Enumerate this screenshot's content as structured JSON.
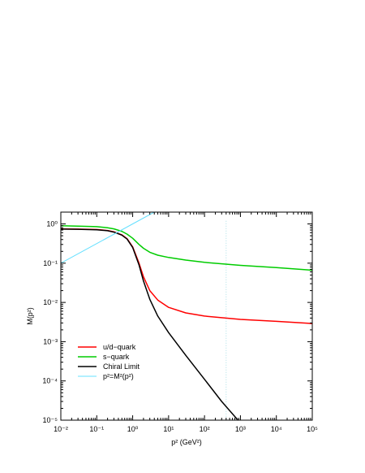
{
  "chart_data": {
    "type": "line",
    "title": "",
    "xlabel": "p² (GeV²)",
    "ylabel": "M(p²)",
    "xscale": "log",
    "yscale": "log",
    "xlim": [
      0.01,
      100000
    ],
    "ylim": [
      1e-05,
      2
    ],
    "x_tick_labels": [
      "10⁻²",
      "10⁻¹",
      "10⁰",
      "10¹",
      "10²",
      "10³",
      "10⁴",
      "10⁵"
    ],
    "y_tick_labels": [
      "10⁻⁵",
      "10⁻⁴",
      "10⁻³",
      "10⁻²",
      "10⁻¹",
      "10⁰"
    ],
    "legend_position": "lower-left",
    "grid": false,
    "series": [
      {
        "name": "u/d−quark",
        "color": "#ff0000",
        "x": [
          0.01,
          0.03,
          0.1,
          0.2,
          0.3,
          0.5,
          0.7,
          1,
          1.5,
          2,
          3,
          5,
          10,
          30,
          100,
          1000,
          10000,
          100000
        ],
        "y": [
          0.75,
          0.74,
          0.72,
          0.68,
          0.63,
          0.53,
          0.42,
          0.26,
          0.1,
          0.045,
          0.02,
          0.0115,
          0.0075,
          0.0054,
          0.0045,
          0.0037,
          0.0033,
          0.0029
        ]
      },
      {
        "name": "s−quark",
        "color": "#00cc00",
        "x": [
          0.01,
          0.03,
          0.1,
          0.2,
          0.3,
          0.5,
          0.7,
          1,
          1.5,
          2,
          3,
          5,
          10,
          30,
          100,
          1000,
          10000,
          100000
        ],
        "y": [
          0.9,
          0.88,
          0.85,
          0.8,
          0.75,
          0.65,
          0.55,
          0.43,
          0.3,
          0.24,
          0.19,
          0.16,
          0.14,
          0.12,
          0.105,
          0.088,
          0.077,
          0.066
        ]
      },
      {
        "name": "Chiral Limit",
        "color": "#000000",
        "x": [
          0.01,
          0.03,
          0.1,
          0.2,
          0.3,
          0.5,
          0.7,
          1,
          1.5,
          2,
          3,
          5,
          10,
          30,
          100,
          300,
          1000,
          1500
        ],
        "y": [
          0.74,
          0.73,
          0.71,
          0.67,
          0.62,
          0.52,
          0.41,
          0.25,
          0.09,
          0.035,
          0.012,
          0.0045,
          0.0017,
          0.00045,
          0.00011,
          3e-05,
          8.5e-06,
          5.8e-06
        ]
      },
      {
        "name": "p²=M²(p²)",
        "color": "#66e0ff",
        "x": [
          0.01,
          0.1,
          1,
          4
        ],
        "y": [
          0.1,
          0.316,
          1,
          2
        ]
      }
    ],
    "annotations": [
      {
        "type": "vertical-dotted-line",
        "x": 400,
        "color": "#a8dde6"
      }
    ]
  }
}
